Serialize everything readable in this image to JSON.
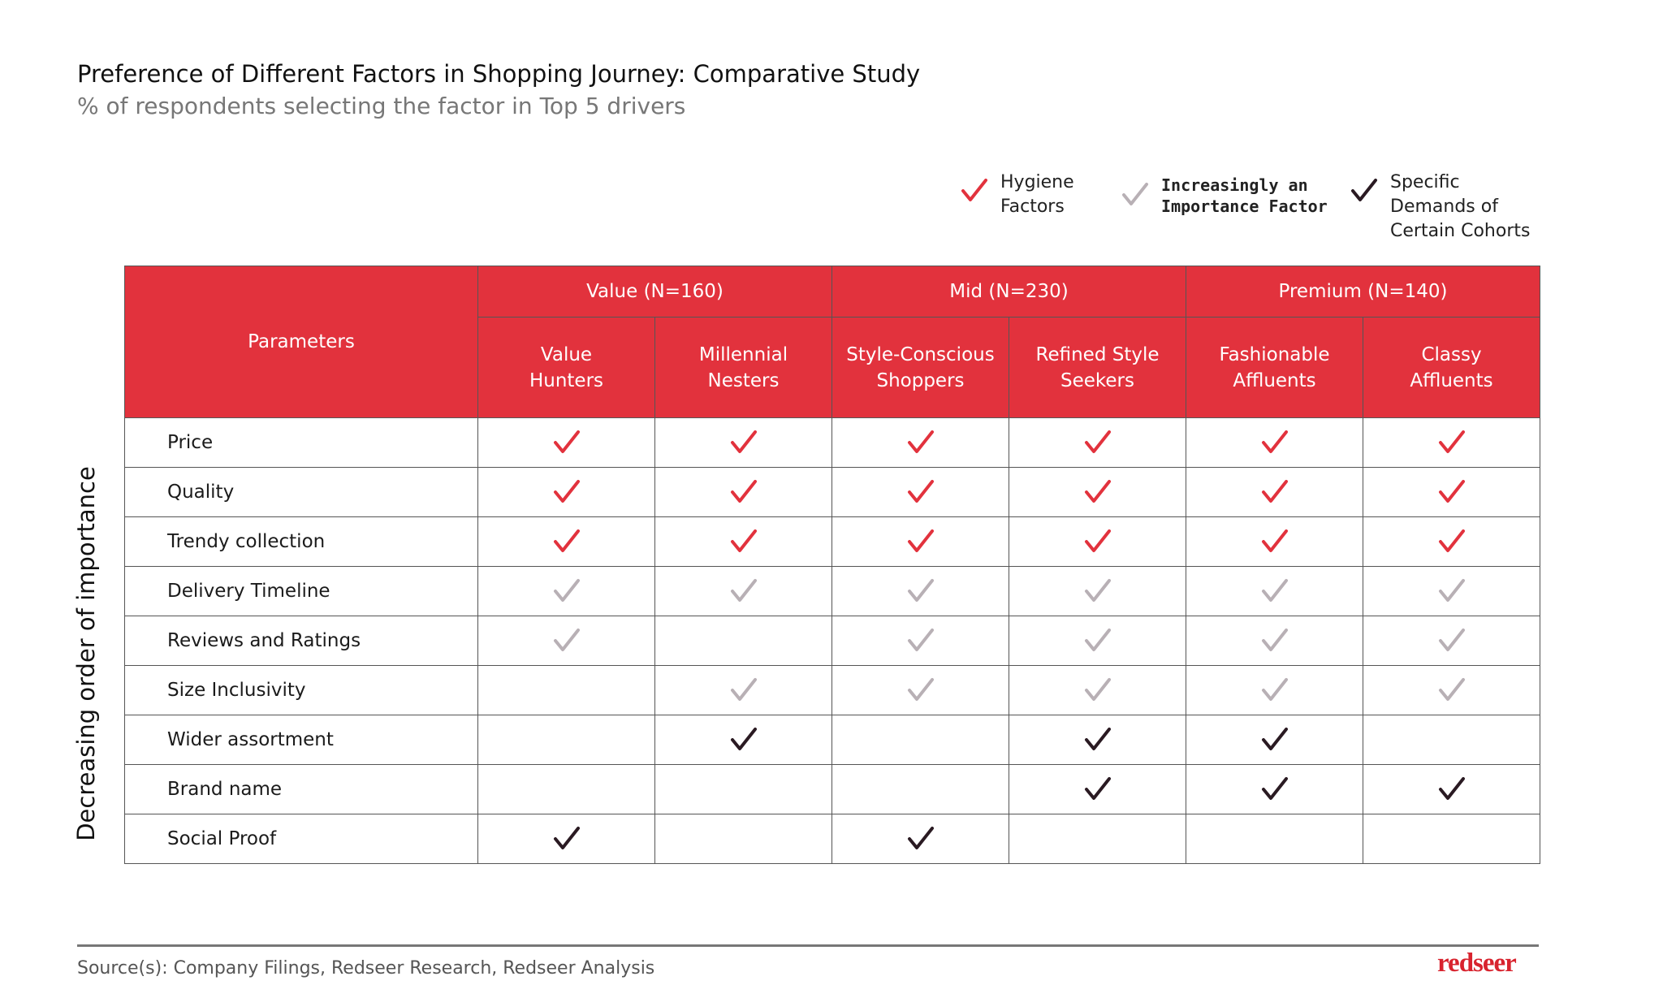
{
  "header": {
    "title": "Preference of Different Factors in Shopping Journey: Comparative Study",
    "subtitle": "% of respondents selecting the factor in Top 5 drivers"
  },
  "legend": [
    {
      "label": "Hygiene\nFactors",
      "color": "#e2323d"
    },
    {
      "label": "Increasingly an\nImportance Factor",
      "color": "#b8b0b5"
    },
    {
      "label": "Specific\nDemands of\nCertain Cohorts",
      "color": "#2a1a22"
    }
  ],
  "axis_label": "Decreasing order of importance",
  "table": {
    "corner": "Parameters",
    "groups": [
      {
        "label": "Value (N=160)",
        "columns": [
          "Value\nHunters",
          "Millennial\nNesters"
        ]
      },
      {
        "label": "Mid (N=230)",
        "columns": [
          "Style-Conscious\nShoppers",
          "Refined Style\nSeekers"
        ]
      },
      {
        "label": "Premium (N=140)",
        "columns": [
          "Fashionable\nAffluents",
          "Classy\nAffluents"
        ]
      }
    ],
    "rows": [
      {
        "label": "Price",
        "cells": [
          0,
          0,
          0,
          0,
          0,
          0
        ]
      },
      {
        "label": "Quality",
        "cells": [
          0,
          0,
          0,
          0,
          0,
          0
        ]
      },
      {
        "label": "Trendy collection",
        "cells": [
          0,
          0,
          0,
          0,
          0,
          0
        ]
      },
      {
        "label": "Delivery Timeline",
        "cells": [
          1,
          1,
          1,
          1,
          1,
          1
        ]
      },
      {
        "label": "Reviews and Ratings",
        "cells": [
          1,
          null,
          1,
          1,
          1,
          1
        ]
      },
      {
        "label": "Size Inclusivity",
        "cells": [
          null,
          1,
          1,
          1,
          1,
          1
        ]
      },
      {
        "label": "Wider assortment",
        "cells": [
          null,
          2,
          null,
          2,
          2,
          null
        ]
      },
      {
        "label": "Brand name",
        "cells": [
          null,
          null,
          null,
          2,
          2,
          2
        ]
      },
      {
        "label": "Social Proof",
        "cells": [
          2,
          null,
          2,
          null,
          null,
          null
        ]
      }
    ]
  },
  "footer": {
    "source": "Source(s): Company Filings, Redseer Research, Redseer Analysis",
    "brand": "redseer"
  }
}
